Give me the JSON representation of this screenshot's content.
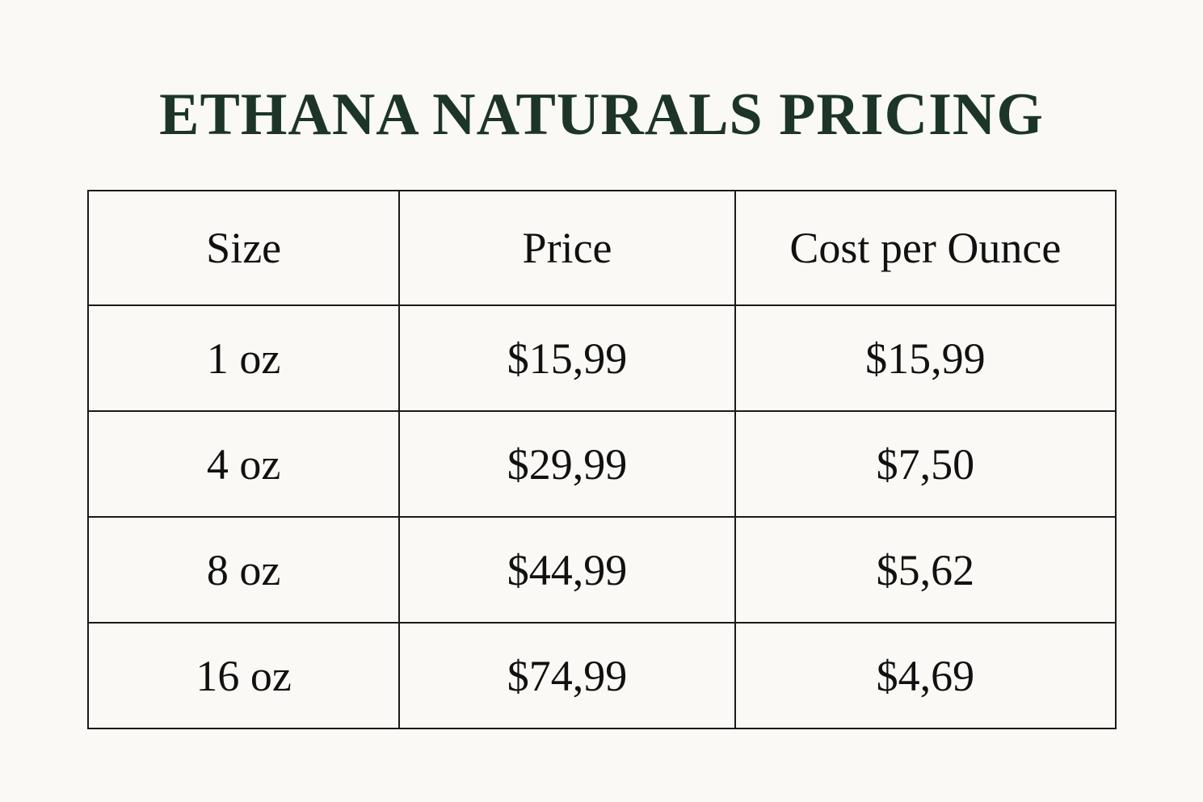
{
  "header": {
    "title": "ETHANA NATURALS PRICING"
  },
  "table": {
    "columns": [
      "Size",
      "Price",
      "Cost per Ounce"
    ],
    "rows": [
      [
        "1 oz",
        "$15,99",
        "$15,99"
      ],
      [
        "4 oz",
        "$29,99",
        "$7,50"
      ],
      [
        "8 oz",
        "$44,99",
        "$5,62"
      ],
      [
        "16 oz",
        "$74,99",
        "$4,69"
      ]
    ]
  }
}
